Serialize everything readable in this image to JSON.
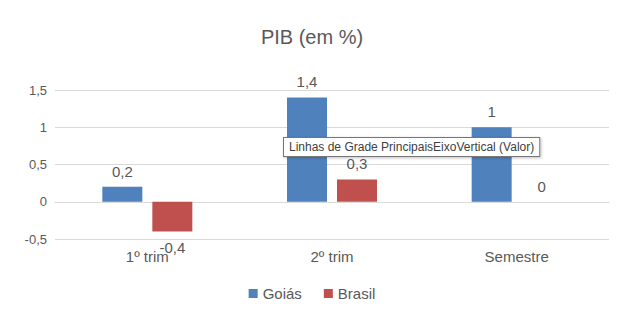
{
  "chart_data": {
    "type": "bar",
    "title": "PIB (em %)",
    "categories": [
      "1º trim",
      "2º trim",
      "Semestre"
    ],
    "series": [
      {
        "name": "Goiás",
        "color": "#4f81bd",
        "values": [
          0.2,
          1.4,
          1
        ],
        "value_labels": [
          "0,2",
          "1,4",
          "1"
        ]
      },
      {
        "name": "Brasil",
        "color": "#c0504d",
        "values": [
          -0.4,
          0.3,
          0
        ],
        "value_labels": [
          "-0,4",
          "0,3",
          "0"
        ]
      }
    ],
    "ylim": [
      -0.5,
      1.5
    ],
    "yticks": [
      {
        "value": -0.5,
        "label": "-0,5"
      },
      0,
      {
        "value": 0.5,
        "label": "0,5"
      },
      1,
      {
        "value": 1.5,
        "label": "1,5"
      }
    ],
    "grid": true,
    "legend": "bottom",
    "data_labels": true,
    "annotations": [
      "Linhas de Grade PrincipaisEixoVertical (Valor)"
    ]
  }
}
